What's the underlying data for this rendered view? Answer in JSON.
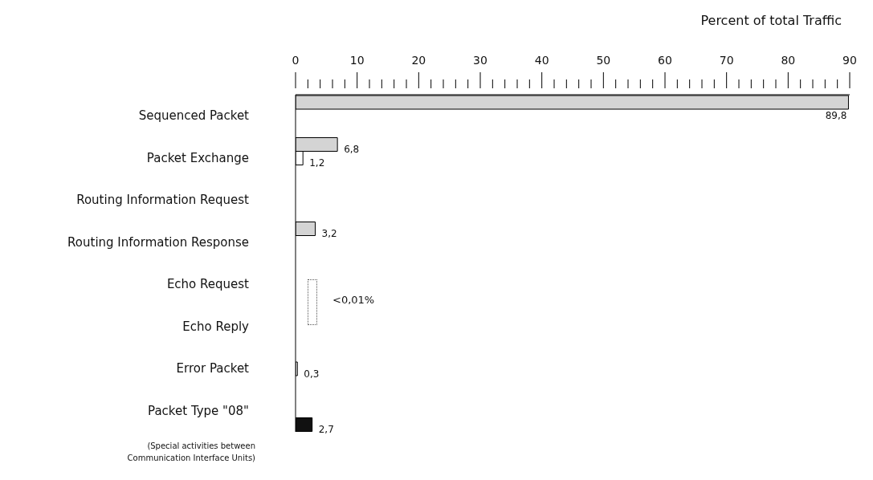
{
  "chart_data": {
    "type": "bar",
    "orientation": "horizontal",
    "xlabel": "Percent of total Traffic",
    "categories": [
      "Sequenced Packet",
      "Packet Exchange",
      "Routing Information Request",
      "Routing Information Response",
      "Echo Request",
      "Echo Reply",
      "Error Packet",
      "Packet Type \"08\""
    ],
    "series": [
      {
        "color": "#d4d4d4",
        "values": [
          89.8,
          6.8,
          null,
          3.2,
          null,
          null,
          null,
          null
        ],
        "value_labels": [
          "89,8",
          "6,8",
          null,
          "3,2",
          null,
          null,
          null,
          null
        ]
      },
      {
        "color": "#ffffff",
        "values": [
          null,
          1.2,
          null,
          null,
          null,
          null,
          0.3,
          null
        ],
        "value_labels": [
          null,
          "1,2",
          null,
          null,
          null,
          null,
          "0,3",
          null
        ]
      },
      {
        "color": "#111111",
        "values": [
          null,
          null,
          null,
          null,
          null,
          null,
          null,
          2.7
        ],
        "value_labels": [
          null,
          null,
          null,
          null,
          null,
          null,
          null,
          "2,7"
        ]
      }
    ],
    "xlim": [
      0,
      90
    ],
    "xticks": [
      0,
      {
        "value": 2,
        "label": null
      },
      {
        "value": 4,
        "label": null
      },
      {
        "value": 6,
        "label": null
      },
      {
        "value": 8,
        "label": null
      },
      10,
      {
        "value": 12,
        "label": null
      },
      {
        "value": 14,
        "label": null
      },
      {
        "value": 16,
        "label": null
      },
      {
        "value": 18,
        "label": null
      },
      20,
      {
        "value": 22,
        "label": null
      },
      {
        "value": 24,
        "label": null
      },
      {
        "value": 26,
        "label": null
      },
      {
        "value": 28,
        "label": null
      },
      30,
      {
        "value": 32,
        "label": null
      },
      {
        "value": 34,
        "label": null
      },
      {
        "value": 36,
        "label": null
      },
      {
        "value": 38,
        "label": null
      },
      40,
      {
        "value": 42,
        "label": null
      },
      {
        "value": 44,
        "label": null
      },
      {
        "value": 46,
        "label": null
      },
      {
        "value": 48,
        "label": null
      },
      50,
      {
        "value": 52,
        "label": null
      },
      {
        "value": 54,
        "label": null
      },
      {
        "value": 56,
        "label": null
      },
      {
        "value": 58,
        "label": null
      },
      60,
      {
        "value": 62,
        "label": null
      },
      {
        "value": 64,
        "label": null
      },
      {
        "value": 66,
        "label": null
      },
      {
        "value": 68,
        "label": null
      },
      70,
      {
        "value": 72,
        "label": null
      },
      {
        "value": 74,
        "label": null
      },
      {
        "value": 76,
        "label": null
      },
      {
        "value": 78,
        "label": null
      },
      80,
      {
        "value": 82,
        "label": null
      },
      {
        "value": 84,
        "label": null
      },
      {
        "value": 86,
        "label": null
      },
      {
        "value": 88,
        "label": null
      },
      90
    ],
    "grid": false,
    "annotations": [
      "<0,01%",
      "(Special activities between Communication Interface Units)"
    ]
  }
}
